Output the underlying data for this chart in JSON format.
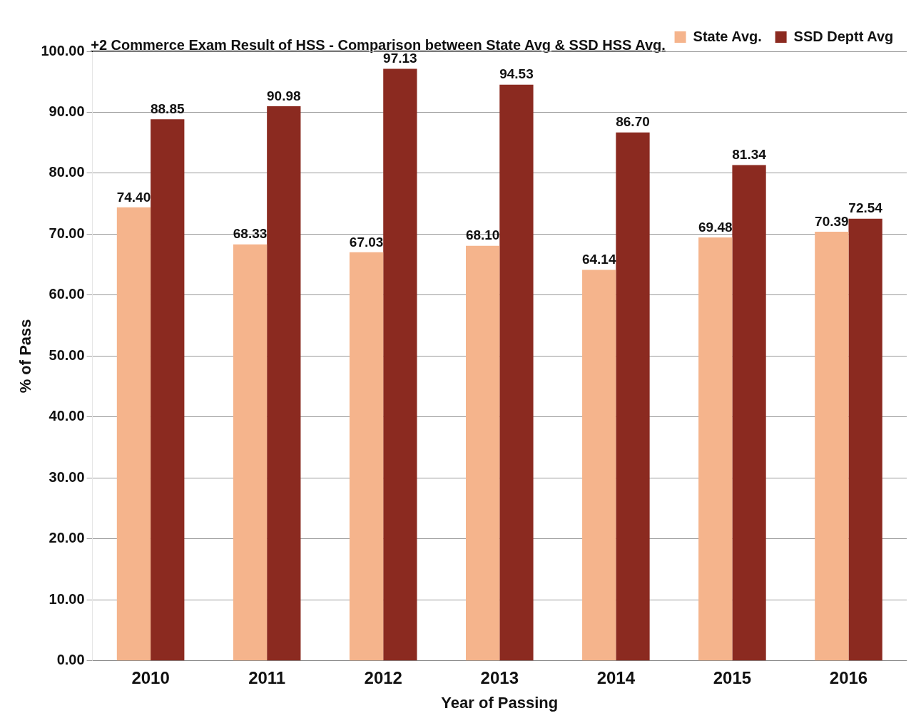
{
  "chart_data": {
    "type": "bar",
    "title": "+2  Commerce Exam Result of HSS - Comparison between State Avg & SSD HSS Avg.",
    "xlabel": "Year of Passing",
    "ylabel": "% of Pass",
    "categories": [
      "2010",
      "2011",
      "2012",
      "2013",
      "2014",
      "2015",
      "2016"
    ],
    "series": [
      {
        "name": "State Avg.",
        "color": "#f5b48c",
        "values": [
          74.4,
          68.33,
          67.03,
          68.1,
          64.14,
          69.48,
          70.39
        ],
        "value_labels": [
          "74.40",
          "68.33",
          "67.03",
          "68.10",
          "64.14",
          "69.48",
          "70.39"
        ]
      },
      {
        "name": "SSD Deptt Avg",
        "color": "#8b2a20",
        "values": [
          88.85,
          90.98,
          97.13,
          94.53,
          86.7,
          81.34,
          72.54
        ],
        "value_labels": [
          "88.85",
          "90.98",
          "97.13",
          "94.53",
          "86.70",
          "81.34",
          "72.54"
        ]
      }
    ],
    "ylim": [
      0,
      100
    ],
    "yticks": [
      {
        "value": 0,
        "label": "0.00"
      },
      {
        "value": 10,
        "label": "10.00"
      },
      {
        "value": 20,
        "label": "20.00"
      },
      {
        "value": 30,
        "label": "30.00"
      },
      {
        "value": 40,
        "label": "40.00"
      },
      {
        "value": 50,
        "label": "50.00"
      },
      {
        "value": 60,
        "label": "60.00"
      },
      {
        "value": 70,
        "label": "70.00"
      },
      {
        "value": 80,
        "label": "80.00"
      },
      {
        "value": 90,
        "label": "90.00"
      },
      {
        "value": 100,
        "label": "100.00"
      }
    ],
    "grid": "y",
    "legend": "top right"
  }
}
